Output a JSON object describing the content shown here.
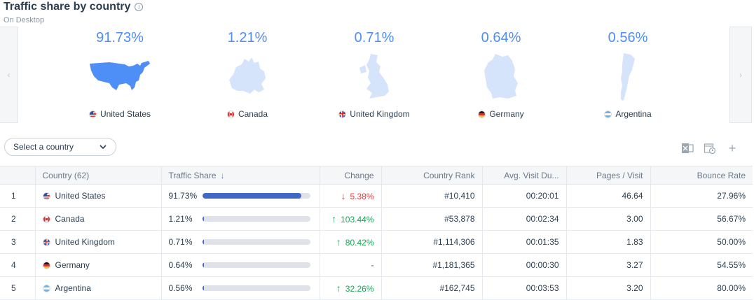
{
  "header": {
    "title": "Traffic share by country",
    "subtitle": "On Desktop"
  },
  "carousel": {
    "cards": [
      {
        "pct": "91.73%",
        "country": "United States",
        "flag": "us"
      },
      {
        "pct": "1.21%",
        "country": "Canada",
        "flag": "ca"
      },
      {
        "pct": "0.71%",
        "country": "United Kingdom",
        "flag": "gb"
      },
      {
        "pct": "0.64%",
        "country": "Germany",
        "flag": "de"
      },
      {
        "pct": "0.56%",
        "country": "Argentina",
        "flag": "ar"
      }
    ]
  },
  "select": {
    "placeholder": "Select a country"
  },
  "table": {
    "headers": {
      "country": "Country (62)",
      "share": "Traffic Share",
      "change": "Change",
      "rank": "Country Rank",
      "duration": "Avg. Visit Du...",
      "pages": "Pages / Visit",
      "bounce": "Bounce Rate"
    },
    "rows": [
      {
        "idx": "1",
        "country": "United States",
        "share": "91.73%",
        "share_fraction": 0.9173,
        "change": "5.38%",
        "change_dir": "down",
        "rank": "#10,410",
        "duration": "00:20:01",
        "pages": "46.64",
        "bounce": "27.96%"
      },
      {
        "idx": "2",
        "country": "Canada",
        "share": "1.21%",
        "share_fraction": 0.0121,
        "change": "103.44%",
        "change_dir": "up",
        "rank": "#53,878",
        "duration": "00:02:34",
        "pages": "3.00",
        "bounce": "56.67%"
      },
      {
        "idx": "3",
        "country": "United Kingdom",
        "share": "0.71%",
        "share_fraction": 0.0071,
        "change": "80.42%",
        "change_dir": "up",
        "rank": "#1,114,306",
        "duration": "00:01:35",
        "pages": "1.83",
        "bounce": "50.00%"
      },
      {
        "idx": "4",
        "country": "Germany",
        "share": "0.64%",
        "share_fraction": 0.0064,
        "change": "-",
        "change_dir": "none",
        "rank": "#1,181,365",
        "duration": "00:00:30",
        "pages": "3.27",
        "bounce": "54.55%"
      },
      {
        "idx": "5",
        "country": "Argentina",
        "share": "0.56%",
        "share_fraction": 0.0056,
        "change": "32.26%",
        "change_dir": "up",
        "rank": "#162,745",
        "duration": "00:03:53",
        "pages": "3.20",
        "bounce": "80.00%"
      }
    ]
  },
  "colors": {
    "accent": "#4e8ef7",
    "bar": "#3f68c7",
    "up": "#19a654",
    "down": "#e23d3d"
  }
}
